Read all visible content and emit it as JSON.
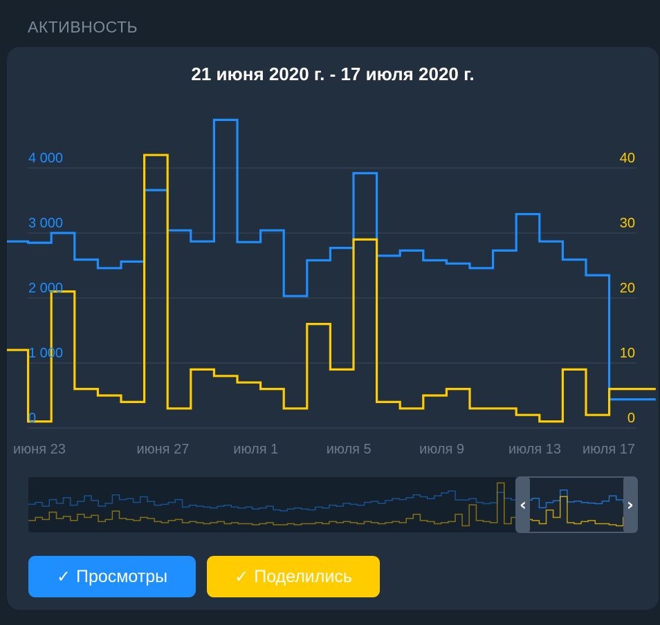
{
  "section": {
    "title": "АКТИВНОСТЬ"
  },
  "chart_data": {
    "type": "line",
    "step": true,
    "title": "21 июня 2020 г. - 17 июля 2020 г.",
    "y_left": {
      "ticks": [
        "0",
        "1 000",
        "2 000",
        "3 000",
        "4 000"
      ],
      "values": [
        0,
        1000,
        2000,
        3000,
        4000
      ],
      "color": "#1f8eff"
    },
    "y_right": {
      "ticks": [
        "0",
        "10",
        "20",
        "30",
        "40"
      ],
      "values": [
        0,
        10,
        20,
        30,
        40
      ],
      "color": "#ffcc00"
    },
    "x_ticks": [
      "июня 23",
      "июня 27",
      "июля 1",
      "июля 5",
      "июля 9",
      "июля 13",
      "июля 17"
    ],
    "x_tick_days": [
      2,
      6,
      10,
      14,
      18,
      22,
      26
    ],
    "ylim_left": [
      0,
      5000
    ],
    "ylim_right": [
      0,
      50
    ],
    "grid": true,
    "series": [
      {
        "name": "Просмотры",
        "axis": "left",
        "color": "#1f8eff",
        "values": [
          2870,
          2850,
          3000,
          2590,
          2460,
          2560,
          3660,
          3040,
          2870,
          4740,
          2860,
          3040,
          2030,
          2580,
          2770,
          3920,
          2650,
          2730,
          2580,
          2530,
          2460,
          2730,
          3290,
          2870,
          2590,
          2350,
          440,
          440
        ]
      },
      {
        "name": "Поделились",
        "axis": "right",
        "color": "#ffcc00",
        "values": [
          12,
          1,
          21,
          6,
          5,
          4,
          42,
          3,
          9,
          8,
          7,
          6,
          3,
          16,
          9,
          29,
          4,
          3,
          5,
          6,
          3,
          3,
          2,
          1,
          9,
          2,
          6,
          6
        ]
      }
    ]
  },
  "navigator": {
    "left_handle": "‹",
    "right_handle": "›"
  },
  "legend_buttons": [
    {
      "label": "Просмотры",
      "check": "✓",
      "color": "#1f8eff"
    },
    {
      "label": "Поделились",
      "check": "✓",
      "color": "#ffcc00"
    }
  ],
  "colors": {
    "background": "#18222d",
    "card": "#212f3f",
    "grid": "#3a4a5c",
    "axis_label": "#6c7c8c"
  }
}
